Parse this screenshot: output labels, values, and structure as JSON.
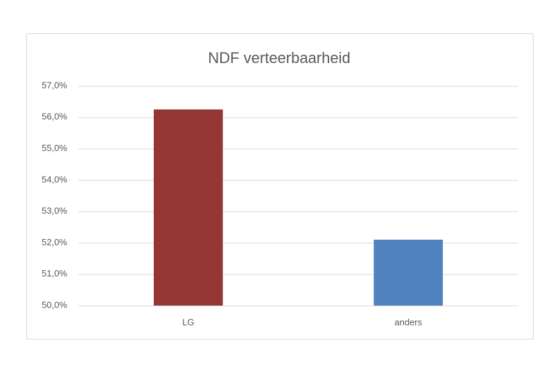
{
  "chart_data": {
    "type": "bar",
    "title": "NDF verteerbaarheid",
    "categories": [
      "LG",
      "anders"
    ],
    "values": [
      56.25,
      52.1
    ],
    "colors": [
      "#943634",
      "#4f81bd"
    ],
    "ylim": [
      50,
      57
    ],
    "yticks": [
      {
        "value": 50,
        "label": "50,0%"
      },
      {
        "value": 51,
        "label": "51,0%"
      },
      {
        "value": 52,
        "label": "52,0%"
      },
      {
        "value": 53,
        "label": "53,0%"
      },
      {
        "value": 54,
        "label": "54,0%"
      },
      {
        "value": 55,
        "label": "55,0%"
      },
      {
        "value": 56,
        "label": "56,0%"
      },
      {
        "value": 57,
        "label": "57,0%"
      }
    ],
    "grid": true
  }
}
